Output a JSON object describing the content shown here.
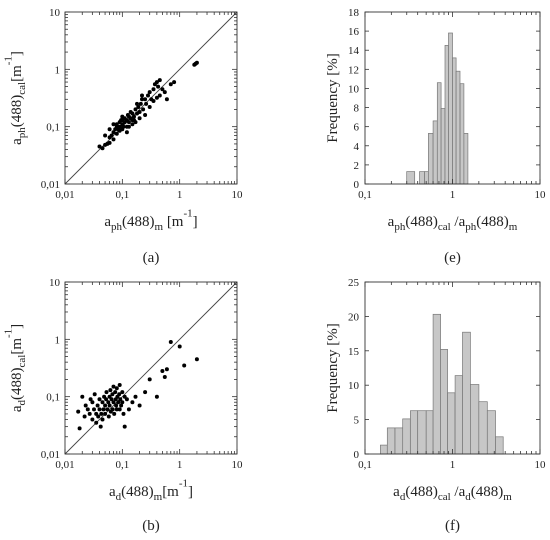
{
  "chart_data": [
    {
      "id": "a",
      "caption": "(a)",
      "type": "scatter",
      "xscale": "log",
      "yscale": "log",
      "xlim": [
        0.01,
        10
      ],
      "ylim": [
        0.01,
        10
      ],
      "xticks": [
        "0,01",
        "0,1",
        "1",
        "10"
      ],
      "yticks": [
        "0,01",
        "0,1",
        "1",
        "10"
      ],
      "xlabel": {
        "base": "a",
        "sub": "ph",
        "mid": "(488)",
        "sub2": "m",
        "tail": " [m",
        "sup": "-1",
        "end": "]"
      },
      "ylabel": {
        "base": "a",
        "sub": "ph",
        "mid": "(488)",
        "sub2": "cal",
        "tail": "[m",
        "sup": "-1",
        "end": "]"
      },
      "reference_line": "1:1",
      "points": [
        [
          0.04,
          0.045
        ],
        [
          0.045,
          0.042
        ],
        [
          0.05,
          0.048
        ],
        [
          0.055,
          0.05
        ],
        [
          0.06,
          0.052
        ],
        [
          0.06,
          0.065
        ],
        [
          0.065,
          0.07
        ],
        [
          0.07,
          0.06
        ],
        [
          0.07,
          0.08
        ],
        [
          0.075,
          0.09
        ],
        [
          0.08,
          0.1
        ],
        [
          0.08,
          0.11
        ],
        [
          0.085,
          0.09
        ],
        [
          0.09,
          0.1
        ],
        [
          0.09,
          0.12
        ],
        [
          0.095,
          0.13
        ],
        [
          0.1,
          0.11
        ],
        [
          0.1,
          0.13
        ],
        [
          0.1,
          0.15
        ],
        [
          0.105,
          0.1
        ],
        [
          0.11,
          0.12
        ],
        [
          0.11,
          0.14
        ],
        [
          0.12,
          0.13
        ],
        [
          0.12,
          0.1
        ],
        [
          0.125,
          0.16
        ],
        [
          0.13,
          0.15
        ],
        [
          0.13,
          0.12
        ],
        [
          0.14,
          0.18
        ],
        [
          0.14,
          0.14
        ],
        [
          0.15,
          0.13
        ],
        [
          0.15,
          0.17
        ],
        [
          0.16,
          0.15
        ],
        [
          0.17,
          0.2
        ],
        [
          0.17,
          0.12
        ],
        [
          0.18,
          0.17
        ],
        [
          0.19,
          0.22
        ],
        [
          0.2,
          0.18
        ],
        [
          0.21,
          0.25
        ],
        [
          0.22,
          0.3
        ],
        [
          0.23,
          0.2
        ],
        [
          0.25,
          0.3
        ],
        [
          0.26,
          0.25
        ],
        [
          0.28,
          0.35
        ],
        [
          0.3,
          0.4
        ],
        [
          0.32,
          0.3
        ],
        [
          0.35,
          0.45
        ],
        [
          0.37,
          0.55
        ],
        [
          0.4,
          0.6
        ],
        [
          0.42,
          0.5
        ],
        [
          0.45,
          0.65
        ],
        [
          0.5,
          0.45
        ],
        [
          0.55,
          0.4
        ],
        [
          0.6,
          0.3
        ],
        [
          0.7,
          0.55
        ],
        [
          0.8,
          0.6
        ],
        [
          0.05,
          0.07
        ],
        [
          0.06,
          0.09
        ],
        [
          0.07,
          0.11
        ],
        [
          0.08,
          0.075
        ],
        [
          0.09,
          0.085
        ],
        [
          0.1,
          0.09
        ],
        [
          0.12,
          0.08
        ],
        [
          0.13,
          0.1
        ],
        [
          0.15,
          0.11
        ],
        [
          0.16,
          0.13
        ],
        [
          0.2,
          0.14
        ],
        [
          0.25,
          0.16
        ],
        [
          0.3,
          0.22
        ],
        [
          0.35,
          0.28
        ],
        [
          0.4,
          0.32
        ],
        [
          0.45,
          0.35
        ],
        [
          1.8,
          1.2
        ],
        [
          1.9,
          1.25
        ],
        [
          2.0,
          1.3
        ],
        [
          0.18,
          0.25
        ],
        [
          0.22,
          0.35
        ]
      ]
    },
    {
      "id": "e",
      "caption": "(e)",
      "type": "bar",
      "xscale": "log",
      "xlim": [
        0.1,
        10
      ],
      "ylim": [
        0,
        18
      ],
      "xticks": [
        "0,1",
        "1",
        "10"
      ],
      "yticks": [
        "0",
        "2",
        "4",
        "6",
        "8",
        "10",
        "12",
        "14",
        "16",
        "18"
      ],
      "xlabel": {
        "base": "a",
        "sub": "ph",
        "mid": "(488)",
        "sub2": "cal",
        "gap": "  /",
        "base2": "a",
        "sub3": "ph",
        "mid2": "(488)",
        "sub4": "m"
      },
      "ylabel": "Frequency [%]",
      "bins": [
        {
          "from": 0.3,
          "to": 0.37,
          "value": 1.3
        },
        {
          "from": 0.42,
          "to": 0.48,
          "value": 1.3
        },
        {
          "from": 0.48,
          "to": 0.53,
          "value": 1.3
        },
        {
          "from": 0.53,
          "to": 0.6,
          "value": 5.3
        },
        {
          "from": 0.6,
          "to": 0.67,
          "value": 6.6
        },
        {
          "from": 0.67,
          "to": 0.74,
          "value": 10.6
        },
        {
          "from": 0.74,
          "to": 0.82,
          "value": 7.9
        },
        {
          "from": 0.82,
          "to": 0.9,
          "value": 14.5
        },
        {
          "from": 0.9,
          "to": 1.0,
          "value": 15.8
        },
        {
          "from": 1.0,
          "to": 1.1,
          "value": 13.2
        },
        {
          "from": 1.1,
          "to": 1.22,
          "value": 11.8
        },
        {
          "from": 1.22,
          "to": 1.35,
          "value": 10.5
        },
        {
          "from": 1.35,
          "to": 1.5,
          "value": 5.3
        }
      ]
    },
    {
      "id": "b",
      "caption": "(b)",
      "type": "scatter",
      "xscale": "log",
      "yscale": "log",
      "xlim": [
        0.01,
        10
      ],
      "ylim": [
        0.01,
        10
      ],
      "xticks": [
        "0,01",
        "0,1",
        "1",
        "10"
      ],
      "yticks": [
        "0,01",
        "0,1",
        "1",
        "10"
      ],
      "xlabel": {
        "base": "a",
        "sub": "d",
        "mid": "(488)",
        "sub2": "m",
        "tail": "[m",
        "sup": "-1",
        "end": "]"
      },
      "ylabel": {
        "base": "a",
        "sub": "d",
        "mid": "(488)",
        "sub2": "cal",
        "tail": "[m",
        "sup": "-1",
        "end": "]"
      },
      "reference_line": "1:1",
      "points": [
        [
          0.017,
          0.055
        ],
        [
          0.018,
          0.028
        ],
        [
          0.02,
          0.1
        ],
        [
          0.022,
          0.045
        ],
        [
          0.023,
          0.07
        ],
        [
          0.025,
          0.06
        ],
        [
          0.027,
          0.05
        ],
        [
          0.028,
          0.09
        ],
        [
          0.03,
          0.04
        ],
        [
          0.03,
          0.08
        ],
        [
          0.032,
          0.06
        ],
        [
          0.033,
          0.11
        ],
        [
          0.035,
          0.05
        ],
        [
          0.035,
          0.035
        ],
        [
          0.037,
          0.07
        ],
        [
          0.038,
          0.045
        ],
        [
          0.04,
          0.06
        ],
        [
          0.04,
          0.09
        ],
        [
          0.042,
          0.03
        ],
        [
          0.043,
          0.05
        ],
        [
          0.045,
          0.08
        ],
        [
          0.045,
          0.04
        ],
        [
          0.047,
          0.06
        ],
        [
          0.048,
          0.1
        ],
        [
          0.05,
          0.07
        ],
        [
          0.05,
          0.05
        ],
        [
          0.052,
          0.09
        ],
        [
          0.053,
          0.12
        ],
        [
          0.055,
          0.06
        ],
        [
          0.057,
          0.08
        ],
        [
          0.058,
          0.045
        ],
        [
          0.06,
          0.1
        ],
        [
          0.06,
          0.07
        ],
        [
          0.062,
          0.13
        ],
        [
          0.063,
          0.055
        ],
        [
          0.065,
          0.09
        ],
        [
          0.067,
          0.11
        ],
        [
          0.068,
          0.06
        ],
        [
          0.07,
          0.15
        ],
        [
          0.07,
          0.08
        ],
        [
          0.072,
          0.05
        ],
        [
          0.075,
          0.12
        ],
        [
          0.077,
          0.09
        ],
        [
          0.078,
          0.07
        ],
        [
          0.08,
          0.14
        ],
        [
          0.08,
          0.06
        ],
        [
          0.082,
          0.1
        ],
        [
          0.085,
          0.08
        ],
        [
          0.088,
          0.11
        ],
        [
          0.09,
          0.06
        ],
        [
          0.09,
          0.16
        ],
        [
          0.092,
          0.09
        ],
        [
          0.095,
          0.07
        ],
        [
          0.1,
          0.12
        ],
        [
          0.1,
          0.08
        ],
        [
          0.105,
          0.05
        ],
        [
          0.11,
          0.1
        ],
        [
          0.11,
          0.03
        ],
        [
          0.12,
          0.09
        ],
        [
          0.13,
          0.06
        ],
        [
          0.15,
          0.08
        ],
        [
          0.17,
          0.1
        ],
        [
          0.2,
          0.07
        ],
        [
          0.25,
          0.12
        ],
        [
          0.3,
          0.2
        ],
        [
          0.4,
          0.1
        ],
        [
          0.5,
          0.28
        ],
        [
          0.55,
          0.22
        ],
        [
          0.6,
          0.3
        ],
        [
          0.7,
          0.9
        ],
        [
          1.0,
          0.75
        ],
        [
          1.2,
          0.35
        ],
        [
          2.0,
          0.45
        ]
      ]
    },
    {
      "id": "f",
      "caption": "(f)",
      "type": "bar",
      "xscale": "log",
      "xlim": [
        0.1,
        10
      ],
      "ylim": [
        0,
        25
      ],
      "xticks": [
        "0,1",
        "1",
        "10"
      ],
      "yticks": [
        "0",
        "5",
        "10",
        "15",
        "20",
        "25"
      ],
      "xlabel": {
        "base": "a",
        "sub": "d",
        "mid": "(488)",
        "sub2": "cal",
        "gap": " /",
        "base2": "a",
        "sub3": "d",
        "mid2": "(488)",
        "sub4": "m"
      },
      "ylabel": "Frequency [%]",
      "bins": [
        {
          "from": 0.15,
          "to": 0.18,
          "value": 1.3
        },
        {
          "from": 0.18,
          "to": 0.22,
          "value": 3.8
        },
        {
          "from": 0.22,
          "to": 0.27,
          "value": 3.8
        },
        {
          "from": 0.27,
          "to": 0.33,
          "value": 5.1
        },
        {
          "from": 0.33,
          "to": 0.4,
          "value": 6.3
        },
        {
          "from": 0.4,
          "to": 0.5,
          "value": 6.3
        },
        {
          "from": 0.5,
          "to": 0.6,
          "value": 6.3
        },
        {
          "from": 0.6,
          "to": 0.73,
          "value": 20.3
        },
        {
          "from": 0.73,
          "to": 0.88,
          "value": 15.2
        },
        {
          "from": 0.88,
          "to": 1.07,
          "value": 8.9
        },
        {
          "from": 1.07,
          "to": 1.3,
          "value": 11.4
        },
        {
          "from": 1.3,
          "to": 1.6,
          "value": 17.7
        },
        {
          "from": 1.6,
          "to": 2.0,
          "value": 10.1
        },
        {
          "from": 2.0,
          "to": 2.5,
          "value": 7.6
        },
        {
          "from": 2.5,
          "to": 3.1,
          "value": 6.3
        },
        {
          "from": 3.1,
          "to": 3.8,
          "value": 2.5
        }
      ]
    }
  ]
}
